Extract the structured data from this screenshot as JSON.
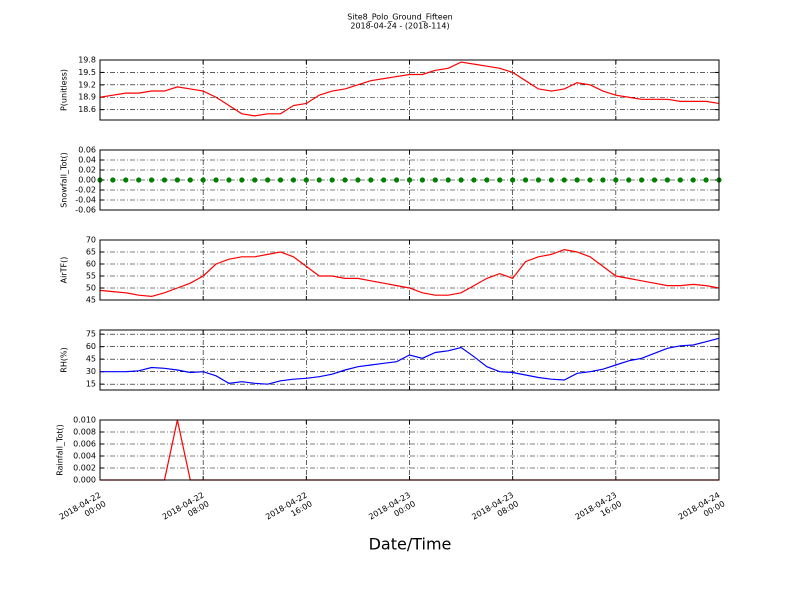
{
  "title": "Site8_Polo_Ground_Fifteen",
  "subtitle": "2018-04-24 - (2018-114)",
  "xlabel": "Date/Time",
  "xlim": [
    "2018-04-22 00:00",
    "2018-04-24 00:00"
  ],
  "xticks": [
    {
      "value": "2018-04-22 00:00",
      "label": [
        "2018-04-22",
        "00:00"
      ]
    },
    {
      "value": "2018-04-22 08:00",
      "label": [
        "2018-04-22",
        "08:00"
      ]
    },
    {
      "value": "2018-04-22 16:00",
      "label": [
        "2018-04-22",
        "16:00"
      ]
    },
    {
      "value": "2018-04-23 00:00",
      "label": [
        "2018-04-23",
        "00:00"
      ]
    },
    {
      "value": "2018-04-23 08:00",
      "label": [
        "2018-04-23",
        "08:00"
      ]
    },
    {
      "value": "2018-04-23 16:00",
      "label": [
        "2018-04-23",
        "16:00"
      ]
    },
    {
      "value": "2018-04-24 00:00",
      "label": [
        "2018-04-24",
        "00:00"
      ]
    }
  ],
  "x": [
    "2018-04-22 00:00",
    "2018-04-22 01:00",
    "2018-04-22 02:00",
    "2018-04-22 03:00",
    "2018-04-22 04:00",
    "2018-04-22 05:00",
    "2018-04-22 06:00",
    "2018-04-22 07:00",
    "2018-04-22 08:00",
    "2018-04-22 09:00",
    "2018-04-22 10:00",
    "2018-04-22 11:00",
    "2018-04-22 12:00",
    "2018-04-22 13:00",
    "2018-04-22 14:00",
    "2018-04-22 15:00",
    "2018-04-22 16:00",
    "2018-04-22 17:00",
    "2018-04-22 18:00",
    "2018-04-22 19:00",
    "2018-04-22 20:00",
    "2018-04-22 21:00",
    "2018-04-22 22:00",
    "2018-04-22 23:00",
    "2018-04-23 00:00",
    "2018-04-23 01:00",
    "2018-04-23 02:00",
    "2018-04-23 03:00",
    "2018-04-23 04:00",
    "2018-04-23 05:00",
    "2018-04-23 06:00",
    "2018-04-23 07:00",
    "2018-04-23 08:00",
    "2018-04-23 09:00",
    "2018-04-23 10:00",
    "2018-04-23 11:00",
    "2018-04-23 12:00",
    "2018-04-23 13:00",
    "2018-04-23 14:00",
    "2018-04-23 15:00",
    "2018-04-23 16:00",
    "2018-04-23 17:00",
    "2018-04-23 18:00",
    "2018-04-23 19:00",
    "2018-04-23 20:00",
    "2018-04-23 21:00",
    "2018-04-23 22:00",
    "2018-04-23 23:00",
    "2018-04-24 00:00"
  ],
  "grid": true,
  "chart_data": [
    {
      "type": "line",
      "ylabel": "P(unitless)",
      "ylim": [
        18.35,
        19.8
      ],
      "yticks": [
        18.6,
        18.9,
        19.2,
        19.5,
        19.8
      ],
      "series": [
        {
          "color": "#ff0000",
          "values": [
            18.9,
            18.95,
            19.0,
            19.0,
            19.05,
            19.05,
            19.15,
            19.1,
            19.05,
            18.9,
            18.7,
            18.5,
            18.45,
            18.5,
            18.5,
            18.7,
            18.75,
            18.95,
            19.05,
            19.1,
            19.2,
            19.3,
            19.35,
            19.4,
            19.45,
            19.45,
            19.55,
            19.6,
            19.75,
            19.7,
            19.65,
            19.6,
            19.5,
            19.3,
            19.1,
            19.05,
            19.1,
            19.25,
            19.2,
            19.05,
            18.95,
            18.9,
            18.85,
            18.85,
            18.85,
            18.8,
            18.8,
            18.8,
            18.75
          ]
        }
      ]
    },
    {
      "type": "scatter",
      "ylabel": "Snowfall_Tot()",
      "ylim": [
        -0.06,
        0.06
      ],
      "yticks": [
        -0.06,
        -0.04,
        -0.02,
        {
          "value": 0,
          "label": "0.00"
        },
        0.02,
        0.04,
        0.06
      ],
      "series": [
        {
          "color": "#008000",
          "values": [
            0,
            0,
            0,
            0,
            0,
            0,
            0,
            0,
            0,
            0,
            0,
            0,
            0,
            0,
            0,
            0,
            0,
            0,
            0,
            0,
            0,
            0,
            0,
            0,
            0,
            0,
            0,
            0,
            0,
            0,
            0,
            0,
            0,
            0,
            0,
            0,
            0,
            0,
            0,
            0,
            0,
            0,
            0,
            0,
            0,
            0,
            0,
            0,
            0
          ]
        }
      ]
    },
    {
      "type": "line",
      "ylabel": "AirTF()",
      "ylim": [
        45,
        70
      ],
      "yticks": [
        45,
        50,
        55,
        60,
        65,
        70
      ],
      "series": [
        {
          "color": "#ff0000",
          "values": [
            49,
            48.5,
            48,
            47,
            46.5,
            48,
            50,
            52,
            55,
            60,
            62,
            63,
            63,
            64,
            65,
            63,
            59,
            55,
            55,
            54,
            54,
            53,
            52,
            51,
            50,
            48,
            47,
            47,
            48,
            51,
            54,
            56,
            54,
            61,
            63,
            64,
            66,
            65,
            63,
            59,
            55,
            54,
            53,
            52,
            51,
            51,
            51.5,
            51,
            50
          ]
        }
      ]
    },
    {
      "type": "line",
      "ylabel": "RH(%)",
      "ylim": [
        8,
        80
      ],
      "yticks": [
        15,
        30,
        45,
        60,
        75
      ],
      "series": [
        {
          "color": "#0000ff",
          "values": [
            30,
            30,
            30,
            31,
            35,
            34,
            32,
            29,
            30,
            25,
            16,
            18,
            16,
            15,
            19,
            21,
            22,
            24,
            27,
            32,
            36,
            38,
            40,
            42,
            50,
            46,
            53,
            55,
            59,
            48,
            36,
            30,
            29,
            26,
            23,
            21,
            20,
            28,
            30,
            33,
            38,
            43,
            46,
            52,
            58,
            61,
            62,
            66,
            70
          ]
        }
      ]
    },
    {
      "type": "line",
      "ylabel": "Rainfall_Tot()",
      "ylim": [
        0,
        0.01
      ],
      "yticks": [
        {
          "value": 0,
          "label": "0.000"
        },
        0.002,
        0.004,
        0.006,
        0.008,
        {
          "value": 0.01,
          "label": "0.010"
        }
      ],
      "series": [
        {
          "color": "#ff0000",
          "values": [
            0,
            0,
            0,
            0,
            0,
            0,
            0.01,
            0,
            0,
            0,
            0,
            0,
            0,
            0,
            0,
            0,
            0,
            0,
            0,
            0,
            0,
            0,
            0,
            0,
            0,
            0,
            0,
            0,
            0,
            0,
            0,
            0,
            0,
            0,
            0,
            0,
            0,
            0,
            0,
            0,
            0,
            0,
            0,
            0,
            0,
            0,
            0,
            0,
            0
          ]
        }
      ]
    }
  ]
}
